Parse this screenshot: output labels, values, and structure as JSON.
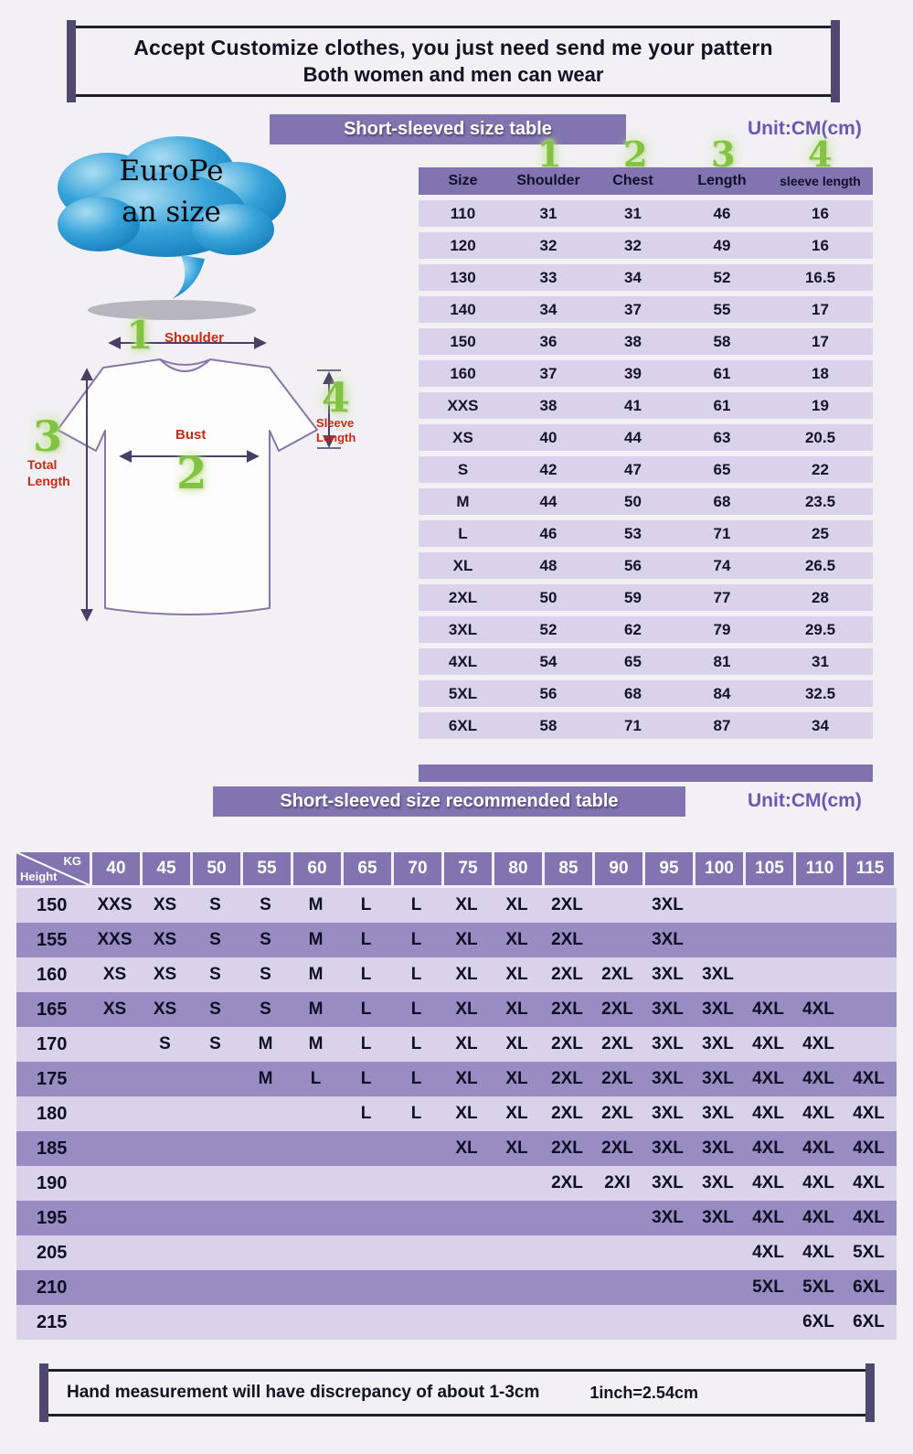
{
  "colors": {
    "banner_purple": "#8174b0",
    "row_lavender": "#d9d2ea",
    "row_purple": "#998cc2",
    "unit_text": "#6a58b5",
    "number_green": "#82c341",
    "label_red": "#cc2a12",
    "cloud_blue": "#2f9fd6"
  },
  "header": {
    "title_line1": "Accept Customize clothes, you just need send me your pattern",
    "title_line2": "Both women and men can wear"
  },
  "section1": {
    "banner": "Short-sleeved size  table",
    "unit": "Unit:CM(cm)",
    "cloud": {
      "line1": "EuroPe",
      "line2": "an  size"
    },
    "diagram": {
      "num_shoulder": "1",
      "num_bust": "2",
      "num_total": "3",
      "num_sleeve": "4",
      "label_shoulder": "Shoulder",
      "label_bust": "Bust",
      "label_total": "Total Length",
      "label_sleeve": "Sleeve Length"
    },
    "table": {
      "headers": [
        "Size",
        "Shoulder",
        "Chest",
        "Length",
        "sleeve length"
      ],
      "header_numbers": [
        "1",
        "2",
        "3",
        "4"
      ],
      "rows": [
        [
          "110",
          "31",
          "31",
          "46",
          "16"
        ],
        [
          "120",
          "32",
          "32",
          "49",
          "16"
        ],
        [
          "130",
          "33",
          "34",
          "52",
          "16.5"
        ],
        [
          "140",
          "34",
          "37",
          "55",
          "17"
        ],
        [
          "150",
          "36",
          "38",
          "58",
          "17"
        ],
        [
          "160",
          "37",
          "39",
          "61",
          "18"
        ],
        [
          "XXS",
          "38",
          "41",
          "61",
          "19"
        ],
        [
          "XS",
          "40",
          "44",
          "63",
          "20.5"
        ],
        [
          "S",
          "42",
          "47",
          "65",
          "22"
        ],
        [
          "M",
          "44",
          "50",
          "68",
          "23.5"
        ],
        [
          "L",
          "46",
          "53",
          "71",
          "25"
        ],
        [
          "XL",
          "48",
          "56",
          "74",
          "26.5"
        ],
        [
          "2XL",
          "50",
          "59",
          "77",
          "28"
        ],
        [
          "3XL",
          "52",
          "62",
          "79",
          "29.5"
        ],
        [
          "4XL",
          "54",
          "65",
          "81",
          "31"
        ],
        [
          "5XL",
          "56",
          "68",
          "84",
          "32.5"
        ],
        [
          "6XL",
          "58",
          "71",
          "87",
          "34"
        ]
      ]
    }
  },
  "section2": {
    "banner": "Short-sleeved size recommended table",
    "unit": "Unit:CM(cm)",
    "corner": {
      "kg": "KG",
      "height": "Height"
    },
    "weights": [
      "40",
      "45",
      "50",
      "55",
      "60",
      "65",
      "70",
      "75",
      "80",
      "85",
      "90",
      "95",
      "100",
      "105",
      "110",
      "115"
    ],
    "rows": [
      {
        "height": "150",
        "cells": [
          "XXS",
          "XS",
          "S",
          "S",
          "M",
          "L",
          "L",
          "XL",
          "XL",
          "2XL",
          "",
          "3XL",
          "",
          "",
          "",
          ""
        ]
      },
      {
        "height": "155",
        "cells": [
          "XXS",
          "XS",
          "S",
          "S",
          "M",
          "L",
          "L",
          "XL",
          "XL",
          "2XL",
          "",
          "3XL",
          "",
          "",
          "",
          ""
        ]
      },
      {
        "height": "160",
        "cells": [
          "XS",
          "XS",
          "S",
          "S",
          "M",
          "L",
          "L",
          "XL",
          "XL",
          "2XL",
          "2XL",
          "3XL",
          "3XL",
          "",
          "",
          ""
        ]
      },
      {
        "height": "165",
        "cells": [
          "XS",
          "XS",
          "S",
          "S",
          "M",
          "L",
          "L",
          "XL",
          "XL",
          "2XL",
          "2XL",
          "3XL",
          "3XL",
          "4XL",
          "4XL",
          ""
        ]
      },
      {
        "height": "170",
        "cells": [
          "",
          "S",
          "S",
          "M",
          "M",
          "L",
          "L",
          "XL",
          "XL",
          "2XL",
          "2XL",
          "3XL",
          "3XL",
          "4XL",
          "4XL",
          ""
        ]
      },
      {
        "height": "175",
        "cells": [
          "",
          "",
          "",
          "M",
          "L",
          "L",
          "L",
          "XL",
          "XL",
          "2XL",
          "2XL",
          "3XL",
          "3XL",
          "4XL",
          "4XL",
          "4XL"
        ]
      },
      {
        "height": "180",
        "cells": [
          "",
          "",
          "",
          "",
          "",
          "L",
          "L",
          "XL",
          "XL",
          "2XL",
          "2XL",
          "3XL",
          "3XL",
          "4XL",
          "4XL",
          "4XL"
        ]
      },
      {
        "height": "185",
        "cells": [
          "",
          "",
          "",
          "",
          "",
          "",
          "",
          "XL",
          "XL",
          "2XL",
          "2XL",
          "3XL",
          "3XL",
          "4XL",
          "4XL",
          "4XL"
        ]
      },
      {
        "height": "190",
        "cells": [
          "",
          "",
          "",
          "",
          "",
          "",
          "",
          "",
          "",
          "2XL",
          "2XI",
          "3XL",
          "3XL",
          "4XL",
          "4XL",
          "4XL"
        ]
      },
      {
        "height": "195",
        "cells": [
          "",
          "",
          "",
          "",
          "",
          "",
          "",
          "",
          "",
          "",
          "",
          "3XL",
          "3XL",
          "4XL",
          "4XL",
          "4XL"
        ]
      },
      {
        "height": "205",
        "cells": [
          "",
          "",
          "",
          "",
          "",
          "",
          "",
          "",
          "",
          "",
          "",
          "",
          "",
          "4XL",
          "4XL",
          "5XL"
        ]
      },
      {
        "height": "210",
        "cells": [
          "",
          "",
          "",
          "",
          "",
          "",
          "",
          "",
          "",
          "",
          "",
          "",
          "",
          "5XL",
          "5XL",
          "6XL"
        ]
      },
      {
        "height": "215",
        "cells": [
          "",
          "",
          "",
          "",
          "",
          "",
          "",
          "",
          "",
          "",
          "",
          "",
          "",
          "",
          "6XL",
          "6XL"
        ]
      }
    ]
  },
  "footer": {
    "text": "Hand measurement will have discrepancy of about  1-3cm",
    "note": "1inch=2.54cm"
  }
}
